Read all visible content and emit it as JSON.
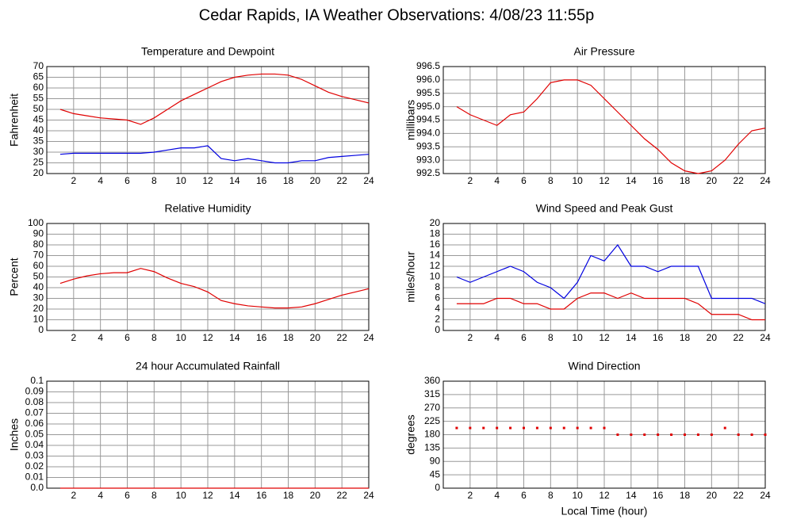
{
  "title": "Cedar Rapids, IA Weather Observations: 4/08/23 11:55p",
  "chart_data": [
    {
      "type": "line",
      "title": "Temperature and Dewpoint",
      "y_label": "Fahrenheit",
      "x": [
        1,
        2,
        3,
        4,
        5,
        6,
        7,
        8,
        9,
        10,
        11,
        12,
        13,
        14,
        15,
        16,
        17,
        18,
        19,
        20,
        21,
        22,
        23,
        24
      ],
      "xlim": [
        0,
        24
      ],
      "xticks": [
        2,
        4,
        6,
        8,
        10,
        12,
        14,
        16,
        18,
        20,
        22,
        24
      ],
      "ylim": [
        20,
        70
      ],
      "yticks": [
        20,
        25,
        30,
        35,
        40,
        45,
        50,
        55,
        60,
        65,
        70
      ],
      "grid": true,
      "series": [
        {
          "color": "#e00000",
          "values": [
            50,
            48,
            47,
            46,
            45.5,
            45,
            43,
            46,
            50,
            54,
            57,
            60,
            63,
            65,
            66,
            66.5,
            66.5,
            66,
            64,
            61,
            58,
            56,
            54.5,
            53
          ]
        },
        {
          "color": "#0000e0",
          "values": [
            29,
            29.5,
            29.5,
            29.5,
            29.5,
            29.5,
            29.5,
            30,
            31,
            32,
            32,
            33,
            27,
            26,
            27,
            26,
            25,
            25,
            26,
            26,
            27.5,
            28,
            28.5,
            29
          ]
        }
      ]
    },
    {
      "type": "line",
      "title": "Air Pressure",
      "y_label": "millibars",
      "x": [
        1,
        2,
        3,
        4,
        5,
        6,
        7,
        8,
        9,
        10,
        11,
        12,
        13,
        14,
        15,
        16,
        17,
        18,
        19,
        20,
        21,
        22,
        23,
        24
      ],
      "xlim": [
        0,
        24
      ],
      "xticks": [
        2,
        4,
        6,
        8,
        10,
        12,
        14,
        16,
        18,
        20,
        22,
        24
      ],
      "ylim": [
        992.5,
        996.5
      ],
      "yticks": [
        992.5,
        {
          "value": 993,
          "label": "993.0"
        },
        993.5,
        {
          "value": 994,
          "label": "994.0"
        },
        994.5,
        {
          "value": 995,
          "label": "995.0"
        },
        995.5,
        {
          "value": 996,
          "label": "996.0"
        },
        996.5
      ],
      "grid": true,
      "series": [
        {
          "color": "#e00000",
          "values": [
            995.0,
            994.7,
            994.5,
            994.3,
            994.7,
            994.8,
            995.3,
            995.9,
            996.0,
            996.0,
            995.8,
            995.3,
            994.8,
            994.3,
            993.8,
            993.4,
            992.9,
            992.6,
            992.5,
            992.6,
            993.0,
            993.6,
            994.1,
            994.2
          ]
        }
      ]
    },
    {
      "type": "line",
      "title": "Relative Humidity",
      "y_label": "Percent",
      "x": [
        1,
        2,
        3,
        4,
        5,
        6,
        7,
        8,
        9,
        10,
        11,
        12,
        13,
        14,
        15,
        16,
        17,
        18,
        19,
        20,
        21,
        22,
        23,
        24
      ],
      "xlim": [
        0,
        24
      ],
      "xticks": [
        2,
        4,
        6,
        8,
        10,
        12,
        14,
        16,
        18,
        20,
        22,
        24
      ],
      "ylim": [
        0,
        100
      ],
      "yticks": [
        0,
        10,
        20,
        30,
        40,
        50,
        60,
        70,
        80,
        90,
        100
      ],
      "grid": true,
      "series": [
        {
          "color": "#e00000",
          "values": [
            44,
            48,
            51,
            53,
            54,
            54,
            58,
            55,
            49,
            44,
            41,
            36,
            28,
            25,
            23,
            22,
            21,
            21,
            22,
            25,
            29,
            33,
            36,
            39
          ]
        }
      ]
    },
    {
      "type": "line",
      "title": "Wind Speed and Peak Gust",
      "y_label": "miles/hour",
      "x": [
        1,
        2,
        3,
        4,
        5,
        6,
        7,
        8,
        9,
        10,
        11,
        12,
        13,
        14,
        15,
        16,
        17,
        18,
        19,
        20,
        21,
        22,
        23,
        24
      ],
      "xlim": [
        0,
        24
      ],
      "xticks": [
        2,
        4,
        6,
        8,
        10,
        12,
        14,
        16,
        18,
        20,
        22,
        24
      ],
      "ylim": [
        0,
        20
      ],
      "yticks": [
        0,
        2,
        4,
        6,
        8,
        10,
        12,
        14,
        16,
        18,
        20
      ],
      "grid": true,
      "series": [
        {
          "color": "#0000e0",
          "values": [
            10,
            9,
            10,
            11,
            12,
            11,
            9,
            8,
            6,
            9,
            14,
            13,
            16,
            12,
            12,
            11,
            12,
            12,
            12,
            6,
            6,
            6,
            6,
            5
          ]
        },
        {
          "color": "#e00000",
          "values": [
            5,
            5,
            5,
            6,
            6,
            5,
            5,
            4,
            4,
            6,
            7,
            7,
            6,
            7,
            6,
            6,
            6,
            6,
            5,
            3,
            3,
            3,
            2,
            2
          ]
        }
      ]
    },
    {
      "type": "line",
      "title": "24 hour Accumulated Rainfall",
      "y_label": "Inches",
      "x": [
        1,
        2,
        3,
        4,
        5,
        6,
        7,
        8,
        9,
        10,
        11,
        12,
        13,
        14,
        15,
        16,
        17,
        18,
        19,
        20,
        21,
        22,
        23,
        24
      ],
      "xlim": [
        0,
        24
      ],
      "xticks": [
        2,
        4,
        6,
        8,
        10,
        12,
        14,
        16,
        18,
        20,
        22,
        24
      ],
      "ylim": [
        0,
        0.1
      ],
      "yticks": [
        {
          "value": 0,
          "label": "0.0"
        },
        0.01,
        0.02,
        0.03,
        0.04,
        0.05,
        0.06,
        0.07,
        0.08,
        0.09,
        0.1
      ],
      "grid": true,
      "series": [
        {
          "color": "#e00000",
          "values": [
            0,
            0,
            0,
            0,
            0,
            0,
            0,
            0,
            0,
            0,
            0,
            0,
            0,
            0,
            0,
            0,
            0,
            0,
            0,
            0,
            0,
            0,
            0,
            0
          ]
        }
      ]
    },
    {
      "type": "scatter",
      "title": "Wind Direction",
      "y_label": "degrees",
      "x_label": "Local Time (hour)",
      "x": [
        1,
        2,
        3,
        4,
        5,
        6,
        7,
        8,
        9,
        10,
        11,
        12,
        13,
        14,
        15,
        16,
        17,
        18,
        19,
        20,
        21,
        22,
        23,
        24
      ],
      "xlim": [
        0,
        24
      ],
      "xticks": [
        2,
        4,
        6,
        8,
        10,
        12,
        14,
        16,
        18,
        20,
        22,
        24
      ],
      "ylim": [
        0,
        360
      ],
      "yticks": [
        0,
        45,
        90,
        135,
        180,
        225,
        270,
        315,
        360
      ],
      "grid": true,
      "series": [
        {
          "color": "#e00000",
          "values": [
            202.5,
            202.5,
            202.5,
            202.5,
            202.5,
            202.5,
            202.5,
            202.5,
            202.5,
            202.5,
            202.5,
            202.5,
            180,
            180,
            180,
            180,
            180,
            180,
            180,
            180,
            202.5,
            180,
            180,
            180
          ]
        }
      ]
    }
  ]
}
